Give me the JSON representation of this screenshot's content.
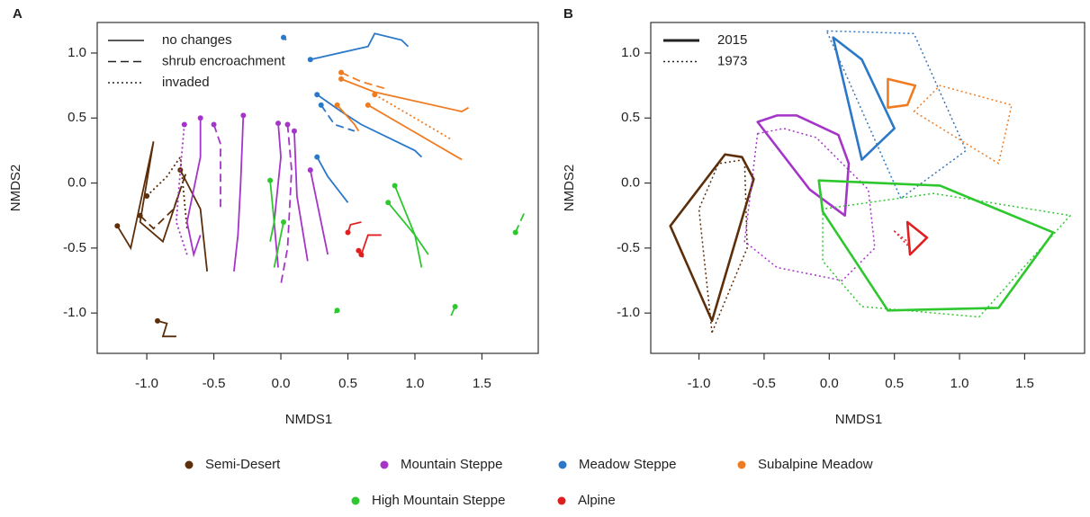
{
  "chart_data": [
    {
      "type": "line",
      "panel": "A",
      "x_label": "NMDS1",
      "y_label": "NMDS2",
      "xlim": [
        -1.37,
        1.92
      ],
      "ylim": [
        -1.31,
        1.235
      ],
      "xticks": [
        {
          "value": -1,
          "label": "-1.0"
        },
        -0.5,
        {
          "value": 0,
          "label": "0.0"
        },
        0.5,
        {
          "value": 1,
          "label": "1.0"
        },
        1.5
      ],
      "yticks": [
        {
          "value": -1,
          "label": "-1.0"
        },
        -0.5,
        {
          "value": 0,
          "label": "0.0"
        },
        0.5,
        {
          "value": 1,
          "label": "1.0"
        }
      ],
      "line_legend": [
        {
          "label": "no  changes",
          "linestyle": "solid"
        },
        {
          "label": "shrub encroachment",
          "linestyle": "dashed"
        },
        {
          "label": "invaded",
          "linestyle": "dotted"
        }
      ],
      "series": [
        {
          "name": "Semi-Desert",
          "color": "#5c2e0a",
          "linestyle": "solid",
          "x": [
            -1.22,
            -1.12,
            -0.95,
            -1.05,
            -0.88,
            -0.75
          ],
          "y": [
            -0.33,
            -0.5,
            0.32,
            -0.3,
            -0.45,
            -0.05
          ]
        },
        {
          "name": "Semi-Desert",
          "color": "#5c2e0a",
          "linestyle": "dotted",
          "x": [
            -1.0,
            -0.85,
            -0.75,
            -0.7
          ],
          "y": [
            -0.1,
            0.05,
            0.2,
            -0.35
          ]
        },
        {
          "name": "Semi-Desert",
          "color": "#5c2e0a",
          "linestyle": "dashed",
          "x": [
            -1.05,
            -0.95,
            -0.8,
            -0.7
          ],
          "y": [
            -0.25,
            -0.35,
            -0.2,
            0.1
          ]
        },
        {
          "name": "Semi-Desert",
          "color": "#5c2e0a",
          "linestyle": "solid",
          "x": [
            -0.92,
            -0.85,
            -0.88,
            -0.78
          ],
          "y": [
            -1.06,
            -1.08,
            -1.18,
            -1.18
          ]
        },
        {
          "name": "Semi-Desert",
          "color": "#5c2e0a",
          "linestyle": "solid",
          "x": [
            -0.75,
            -0.6,
            -0.55
          ],
          "y": [
            0.1,
            -0.2,
            -0.68
          ]
        },
        {
          "name": "Mountain Steppe",
          "color": "#a535c8",
          "linestyle": "solid",
          "x": [
            -0.6,
            -0.6,
            -0.7,
            -0.65,
            -0.6
          ],
          "y": [
            0.5,
            0.2,
            -0.3,
            -0.55,
            -0.4
          ]
        },
        {
          "name": "Mountain Steppe",
          "color": "#a535c8",
          "linestyle": "dotted",
          "x": [
            -0.72,
            -0.75,
            -0.78,
            -0.7
          ],
          "y": [
            0.45,
            0.1,
            -0.3,
            -0.55
          ]
        },
        {
          "name": "Mountain Steppe",
          "color": "#a535c8",
          "linestyle": "solid",
          "x": [
            -0.28,
            -0.3,
            -0.32,
            -0.35
          ],
          "y": [
            0.52,
            0.0,
            -0.4,
            -0.68
          ]
        },
        {
          "name": "Mountain Steppe",
          "color": "#a535c8",
          "linestyle": "dashed",
          "x": [
            -0.5,
            -0.45,
            -0.45
          ],
          "y": [
            0.45,
            0.3,
            -0.2
          ]
        },
        {
          "name": "Mountain Steppe",
          "color": "#a535c8",
          "linestyle": "solid",
          "x": [
            -0.02,
            0.0,
            -0.05,
            -0.02
          ],
          "y": [
            0.46,
            0.2,
            -0.3,
            -0.65
          ]
        },
        {
          "name": "Mountain Steppe",
          "color": "#a535c8",
          "linestyle": "dashed",
          "x": [
            0.05,
            0.08,
            0.05,
            0.0
          ],
          "y": [
            0.45,
            0.1,
            -0.5,
            -0.78
          ]
        },
        {
          "name": "Mountain Steppe",
          "color": "#a535c8",
          "linestyle": "solid",
          "x": [
            0.1,
            0.12,
            0.2
          ],
          "y": [
            0.4,
            -0.1,
            -0.6
          ]
        },
        {
          "name": "Mountain Steppe",
          "color": "#a535c8",
          "linestyle": "solid",
          "x": [
            0.22,
            0.3,
            0.35
          ],
          "y": [
            0.1,
            -0.3,
            -0.55
          ]
        },
        {
          "name": "Meadow Steppe",
          "color": "#2b78c8",
          "linestyle": "solid",
          "x": [
            0.02,
            0.04
          ],
          "y": [
            1.12,
            1.1
          ]
        },
        {
          "name": "Meadow Steppe",
          "color": "#2b78c8",
          "linestyle": "solid",
          "x": [
            0.22,
            0.65,
            0.7,
            0.9,
            0.95
          ],
          "y": [
            0.95,
            1.05,
            1.15,
            1.1,
            1.05
          ]
        },
        {
          "name": "Meadow Steppe",
          "color": "#2b78c8",
          "linestyle": "solid",
          "x": [
            0.27,
            0.45,
            0.6,
            1.0,
            1.05
          ],
          "y": [
            0.68,
            0.55,
            0.45,
            0.25,
            0.2
          ]
        },
        {
          "name": "Meadow Steppe",
          "color": "#2b78c8",
          "linestyle": "solid",
          "x": [
            0.27,
            0.35,
            0.5
          ],
          "y": [
            0.2,
            0.05,
            -0.15
          ]
        },
        {
          "name": "Meadow Steppe",
          "color": "#2b78c8",
          "linestyle": "dashed",
          "x": [
            0.3,
            0.4,
            0.55
          ],
          "y": [
            0.6,
            0.45,
            0.4
          ]
        },
        {
          "name": "Subalpine Meadow",
          "color": "#f07c22",
          "linestyle": "solid",
          "x": [
            0.45,
            0.7,
            1.35,
            1.4
          ],
          "y": [
            0.8,
            0.7,
            0.55,
            0.58
          ]
        },
        {
          "name": "Subalpine Meadow",
          "color": "#f07c22",
          "linestyle": "dashed",
          "x": [
            0.45,
            0.6,
            0.8
          ],
          "y": [
            0.85,
            0.78,
            0.72
          ]
        },
        {
          "name": "Subalpine Meadow",
          "color": "#f07c22",
          "linestyle": "solid",
          "x": [
            0.65,
            0.9,
            1.35
          ],
          "y": [
            0.6,
            0.45,
            0.18
          ]
        },
        {
          "name": "Subalpine Meadow",
          "color": "#f07c22",
          "linestyle": "dotted",
          "x": [
            0.7,
            1.0,
            1.28
          ],
          "y": [
            0.68,
            0.5,
            0.33
          ]
        },
        {
          "name": "Subalpine Meadow",
          "color": "#f07c22",
          "linestyle": "solid",
          "x": [
            0.42,
            0.55,
            0.58
          ],
          "y": [
            0.6,
            0.45,
            0.4
          ]
        },
        {
          "name": "High Mountain Steppe",
          "color": "#2ec82e",
          "linestyle": "solid",
          "x": [
            -0.08,
            -0.05,
            -0.08
          ],
          "y": [
            0.02,
            -0.3,
            -0.45
          ]
        },
        {
          "name": "High Mountain Steppe",
          "color": "#2ec82e",
          "linestyle": "solid",
          "x": [
            0.02,
            -0.05
          ],
          "y": [
            -0.3,
            -0.65
          ]
        },
        {
          "name": "High Mountain Steppe",
          "color": "#2ec82e",
          "linestyle": "solid",
          "x": [
            0.85,
            1.0,
            1.1
          ],
          "y": [
            -0.02,
            -0.4,
            -0.55
          ]
        },
        {
          "name": "High Mountain Steppe",
          "color": "#2ec82e",
          "linestyle": "solid",
          "x": [
            0.8,
            1.0,
            1.05
          ],
          "y": [
            -0.15,
            -0.4,
            -0.65
          ]
        },
        {
          "name": "High Mountain Steppe",
          "color": "#2ec82e",
          "linestyle": "dashed",
          "x": [
            1.75,
            1.82
          ],
          "y": [
            -0.38,
            -0.22
          ]
        },
        {
          "name": "High Mountain Steppe",
          "color": "#2ec82e",
          "linestyle": "solid",
          "x": [
            0.42,
            0.4
          ],
          "y": [
            -0.98,
            -1.0
          ]
        },
        {
          "name": "High Mountain Steppe",
          "color": "#2ec82e",
          "linestyle": "solid",
          "x": [
            1.3,
            1.27
          ],
          "y": [
            -0.95,
            -1.02
          ]
        },
        {
          "name": "Alpine",
          "color": "#e02020",
          "linestyle": "solid",
          "x": [
            0.5,
            0.52,
            0.6
          ],
          "y": [
            -0.38,
            -0.32,
            -0.3
          ]
        },
        {
          "name": "Alpine",
          "color": "#e02020",
          "linestyle": "solid",
          "x": [
            0.6,
            0.65,
            0.75
          ],
          "y": [
            -0.55,
            -0.4,
            -0.4
          ]
        },
        {
          "name": "Alpine",
          "color": "#e02020",
          "linestyle": "dashed",
          "x": [
            0.58,
            0.62
          ],
          "y": [
            -0.52,
            -0.58
          ]
        }
      ]
    },
    {
      "type": "polygon",
      "panel": "B",
      "x_label": "NMDS1",
      "y_label": "NMDS2",
      "xlim": [
        -1.37,
        1.96
      ],
      "ylim": [
        -1.31,
        1.235
      ],
      "xticks": [
        {
          "value": -1,
          "label": "-1.0"
        },
        -0.5,
        {
          "value": 0,
          "label": "0.0"
        },
        0.5,
        {
          "value": 1,
          "label": "1.0"
        },
        1.5
      ],
      "yticks": [
        {
          "value": -1,
          "label": "-1.0"
        },
        -0.5,
        {
          "value": 0,
          "label": "0.0"
        },
        0.5,
        {
          "value": 1,
          "label": "1.0"
        }
      ],
      "line_legend": [
        {
          "label": "2015",
          "linestyle": "solid"
        },
        {
          "label": "1973",
          "linestyle": "dotted"
        }
      ],
      "series": [
        {
          "name": "Semi-Desert",
          "color": "#5c2e0a",
          "linestyle": "solid",
          "x": [
            -1.22,
            -0.8,
            -0.67,
            -0.58,
            -0.9
          ],
          "y": [
            -0.33,
            0.22,
            0.2,
            0.03,
            -1.06
          ]
        },
        {
          "name": "Semi-Desert",
          "color": "#5c2e0a",
          "linestyle": "dotted",
          "x": [
            -0.9,
            -1.0,
            -0.85,
            -0.65,
            -0.63
          ],
          "y": [
            -1.15,
            -0.2,
            0.15,
            0.18,
            -0.5
          ]
        },
        {
          "name": "Mountain Steppe",
          "color": "#a535c8",
          "linestyle": "solid",
          "x": [
            -0.55,
            -0.4,
            -0.25,
            0.07,
            0.15,
            0.12,
            -0.15
          ],
          "y": [
            0.47,
            0.52,
            0.52,
            0.37,
            0.15,
            -0.25,
            -0.05
          ]
        },
        {
          "name": "Mountain Steppe",
          "color": "#a535c8",
          "linestyle": "dotted",
          "x": [
            -0.55,
            -0.35,
            -0.1,
            0.3,
            0.35,
            0.1,
            -0.4,
            -0.65
          ],
          "y": [
            0.38,
            0.42,
            0.35,
            -0.05,
            -0.5,
            -0.75,
            -0.65,
            -0.45
          ]
        },
        {
          "name": "Meadow Steppe",
          "color": "#2b78c8",
          "linestyle": "solid",
          "x": [
            0.03,
            0.25,
            0.5,
            0.25
          ],
          "y": [
            1.12,
            0.95,
            0.42,
            0.18
          ]
        },
        {
          "name": "Meadow Steppe",
          "color": "#2b78c8",
          "linestyle": "dotted",
          "x": [
            -0.02,
            0.65,
            1.05,
            0.6,
            0.55
          ],
          "y": [
            1.17,
            1.15,
            0.25,
            -0.08,
            -0.12
          ]
        },
        {
          "name": "Subalpine Meadow",
          "color": "#f07c22",
          "linestyle": "solid",
          "x": [
            0.45,
            0.66,
            0.6,
            0.45
          ],
          "y": [
            0.8,
            0.75,
            0.6,
            0.58
          ]
        },
        {
          "name": "Subalpine Meadow",
          "color": "#f07c22",
          "linestyle": "dotted",
          "x": [
            0.65,
            0.85,
            1.4,
            1.3
          ],
          "y": [
            0.55,
            0.75,
            0.6,
            0.15
          ]
        },
        {
          "name": "High Mountain Steppe",
          "color": "#2ec82e",
          "linestyle": "solid",
          "x": [
            -0.08,
            0.85,
            1.72,
            1.3,
            0.45,
            -0.05
          ],
          "y": [
            0.02,
            -0.02,
            -0.38,
            -0.96,
            -0.98,
            -0.22
          ]
        },
        {
          "name": "High Mountain Steppe",
          "color": "#2ec82e",
          "linestyle": "dotted",
          "x": [
            -0.05,
            -0.05,
            0.25,
            1.15,
            1.85,
            0.8
          ],
          "y": [
            -0.2,
            -0.6,
            -0.95,
            -1.03,
            -0.25,
            -0.08
          ]
        },
        {
          "name": "Alpine",
          "color": "#e02020",
          "linestyle": "solid",
          "x": [
            0.6,
            0.75,
            0.62
          ],
          "y": [
            -0.3,
            -0.42,
            -0.55
          ]
        },
        {
          "name": "Alpine",
          "color": "#e02020",
          "linestyle": "dotted",
          "x": [
            0.5,
            0.6,
            0.62
          ],
          "y": [
            -0.37,
            -0.45,
            -0.5
          ]
        }
      ]
    }
  ]
}
